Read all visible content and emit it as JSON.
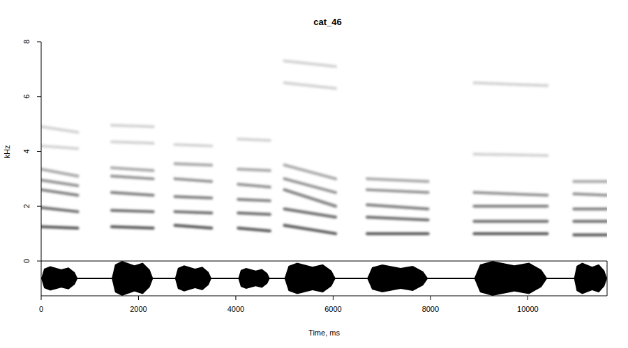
{
  "chart_data": {
    "type": "spectrogram",
    "title": "cat_46",
    "x_label": "Time, ms",
    "y_label": "kHz",
    "xlim": [
      0,
      11630
    ],
    "ylim": [
      0,
      8
    ],
    "xticks": [
      0,
      2000,
      4000,
      6000,
      8000,
      10000
    ],
    "yticks": [
      0,
      2,
      4,
      6,
      8
    ],
    "syllables": [
      {
        "start": 0,
        "end": 750,
        "amplitude": 0.7,
        "harmonics": [
          [
            1.25,
            1.2
          ],
          [
            1.95,
            1.8
          ],
          [
            2.6,
            2.4
          ],
          [
            2.95,
            2.75
          ],
          [
            3.35,
            3.1
          ],
          [
            4.2,
            4.1
          ],
          [
            4.9,
            4.7
          ]
        ]
      },
      {
        "start": 1450,
        "end": 2300,
        "amplitude": 1.0,
        "harmonics": [
          [
            1.25,
            1.2
          ],
          [
            1.85,
            1.8
          ],
          [
            2.5,
            2.4
          ],
          [
            3.1,
            3.0
          ],
          [
            3.4,
            3.3
          ],
          [
            4.35,
            4.3
          ],
          [
            4.95,
            4.9
          ]
        ]
      },
      {
        "start": 2750,
        "end": 3500,
        "amplitude": 0.75,
        "harmonics": [
          [
            1.3,
            1.2
          ],
          [
            1.8,
            1.75
          ],
          [
            2.35,
            2.3
          ],
          [
            3.0,
            2.9
          ],
          [
            3.55,
            3.5
          ],
          [
            4.25,
            4.2
          ]
        ]
      },
      {
        "start": 4050,
        "end": 4700,
        "amplitude": 0.6,
        "harmonics": [
          [
            1.2,
            1.1
          ],
          [
            1.75,
            1.7
          ],
          [
            2.25,
            2.2
          ],
          [
            2.8,
            2.7
          ],
          [
            3.35,
            3.3
          ],
          [
            4.45,
            4.4
          ]
        ]
      },
      {
        "start": 5000,
        "end": 6050,
        "amplitude": 0.9,
        "harmonics": [
          [
            1.3,
            1.0
          ],
          [
            1.9,
            1.6
          ],
          [
            2.6,
            2.0
          ],
          [
            3.0,
            2.5
          ],
          [
            3.5,
            3.0
          ],
          [
            6.5,
            6.3
          ],
          [
            7.3,
            7.1
          ]
        ]
      },
      {
        "start": 6700,
        "end": 7950,
        "amplitude": 0.8,
        "harmonics": [
          [
            1.0,
            1.0
          ],
          [
            1.6,
            1.5
          ],
          [
            2.05,
            1.9
          ],
          [
            2.6,
            2.5
          ],
          [
            3.0,
            2.9
          ]
        ]
      },
      {
        "start": 8900,
        "end": 10400,
        "amplitude": 1.0,
        "harmonics": [
          [
            1.0,
            1.0
          ],
          [
            1.45,
            1.45
          ],
          [
            2.0,
            2.0
          ],
          [
            2.5,
            2.4
          ],
          [
            3.9,
            3.85
          ],
          [
            6.5,
            6.4
          ]
        ]
      },
      {
        "start": 10950,
        "end": 11630,
        "amplitude": 0.9,
        "harmonics": [
          [
            0.95,
            0.95
          ],
          [
            1.45,
            1.45
          ],
          [
            1.9,
            1.9
          ],
          [
            2.45,
            2.4
          ],
          [
            2.9,
            2.9
          ]
        ]
      }
    ]
  }
}
